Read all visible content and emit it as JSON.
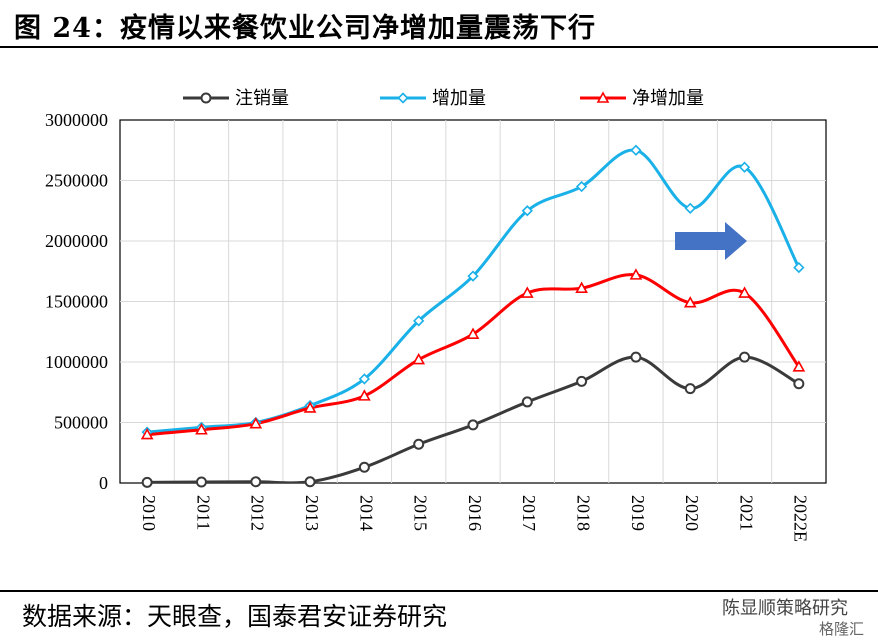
{
  "figure": {
    "title": "图 24：疫情以来餐饮业公司净增加量震荡下行",
    "source": "数据来源：天眼查，国泰君安证券研究",
    "watermark": "陈显顺策略研究",
    "watermark_sub": "格隆汇"
  },
  "chart_data": {
    "type": "line",
    "title": "",
    "xlabel": "",
    "ylabel": "",
    "categories": [
      "2010",
      "2011",
      "2012",
      "2013",
      "2014",
      "2015",
      "2016",
      "2017",
      "2018",
      "2019",
      "2020",
      "2021",
      "2022E"
    ],
    "ylim": [
      0,
      3000000
    ],
    "yticks": [
      0,
      500000,
      1000000,
      1500000,
      2000000,
      2500000,
      3000000
    ],
    "ytick_labels": [
      "0",
      "500000",
      "1000000",
      "1500000",
      "2000000",
      "2500000",
      "3000000"
    ],
    "grid": true,
    "legend_position": "top",
    "smooth": true,
    "series": [
      {
        "name": "注销量",
        "color": "#3a3a3a",
        "marker": "circle",
        "values": [
          5000,
          8000,
          10000,
          10000,
          130000,
          320000,
          480000,
          670000,
          840000,
          1040000,
          780000,
          1040000,
          820000
        ]
      },
      {
        "name": "增加量",
        "color": "#1ab0e8",
        "marker": "diamond",
        "values": [
          420000,
          460000,
          500000,
          640000,
          860000,
          1340000,
          1710000,
          2250000,
          2450000,
          2750000,
          2270000,
          2610000,
          1780000
        ]
      },
      {
        "name": "净增加量",
        "color": "#ff0000",
        "marker": "triangle",
        "values": [
          400000,
          440000,
          490000,
          620000,
          720000,
          1020000,
          1230000,
          1570000,
          1610000,
          1720000,
          1490000,
          1570000,
          960000
        ]
      }
    ],
    "annotation": {
      "type": "arrow",
      "color": "#4472c4",
      "direction": "right"
    }
  }
}
